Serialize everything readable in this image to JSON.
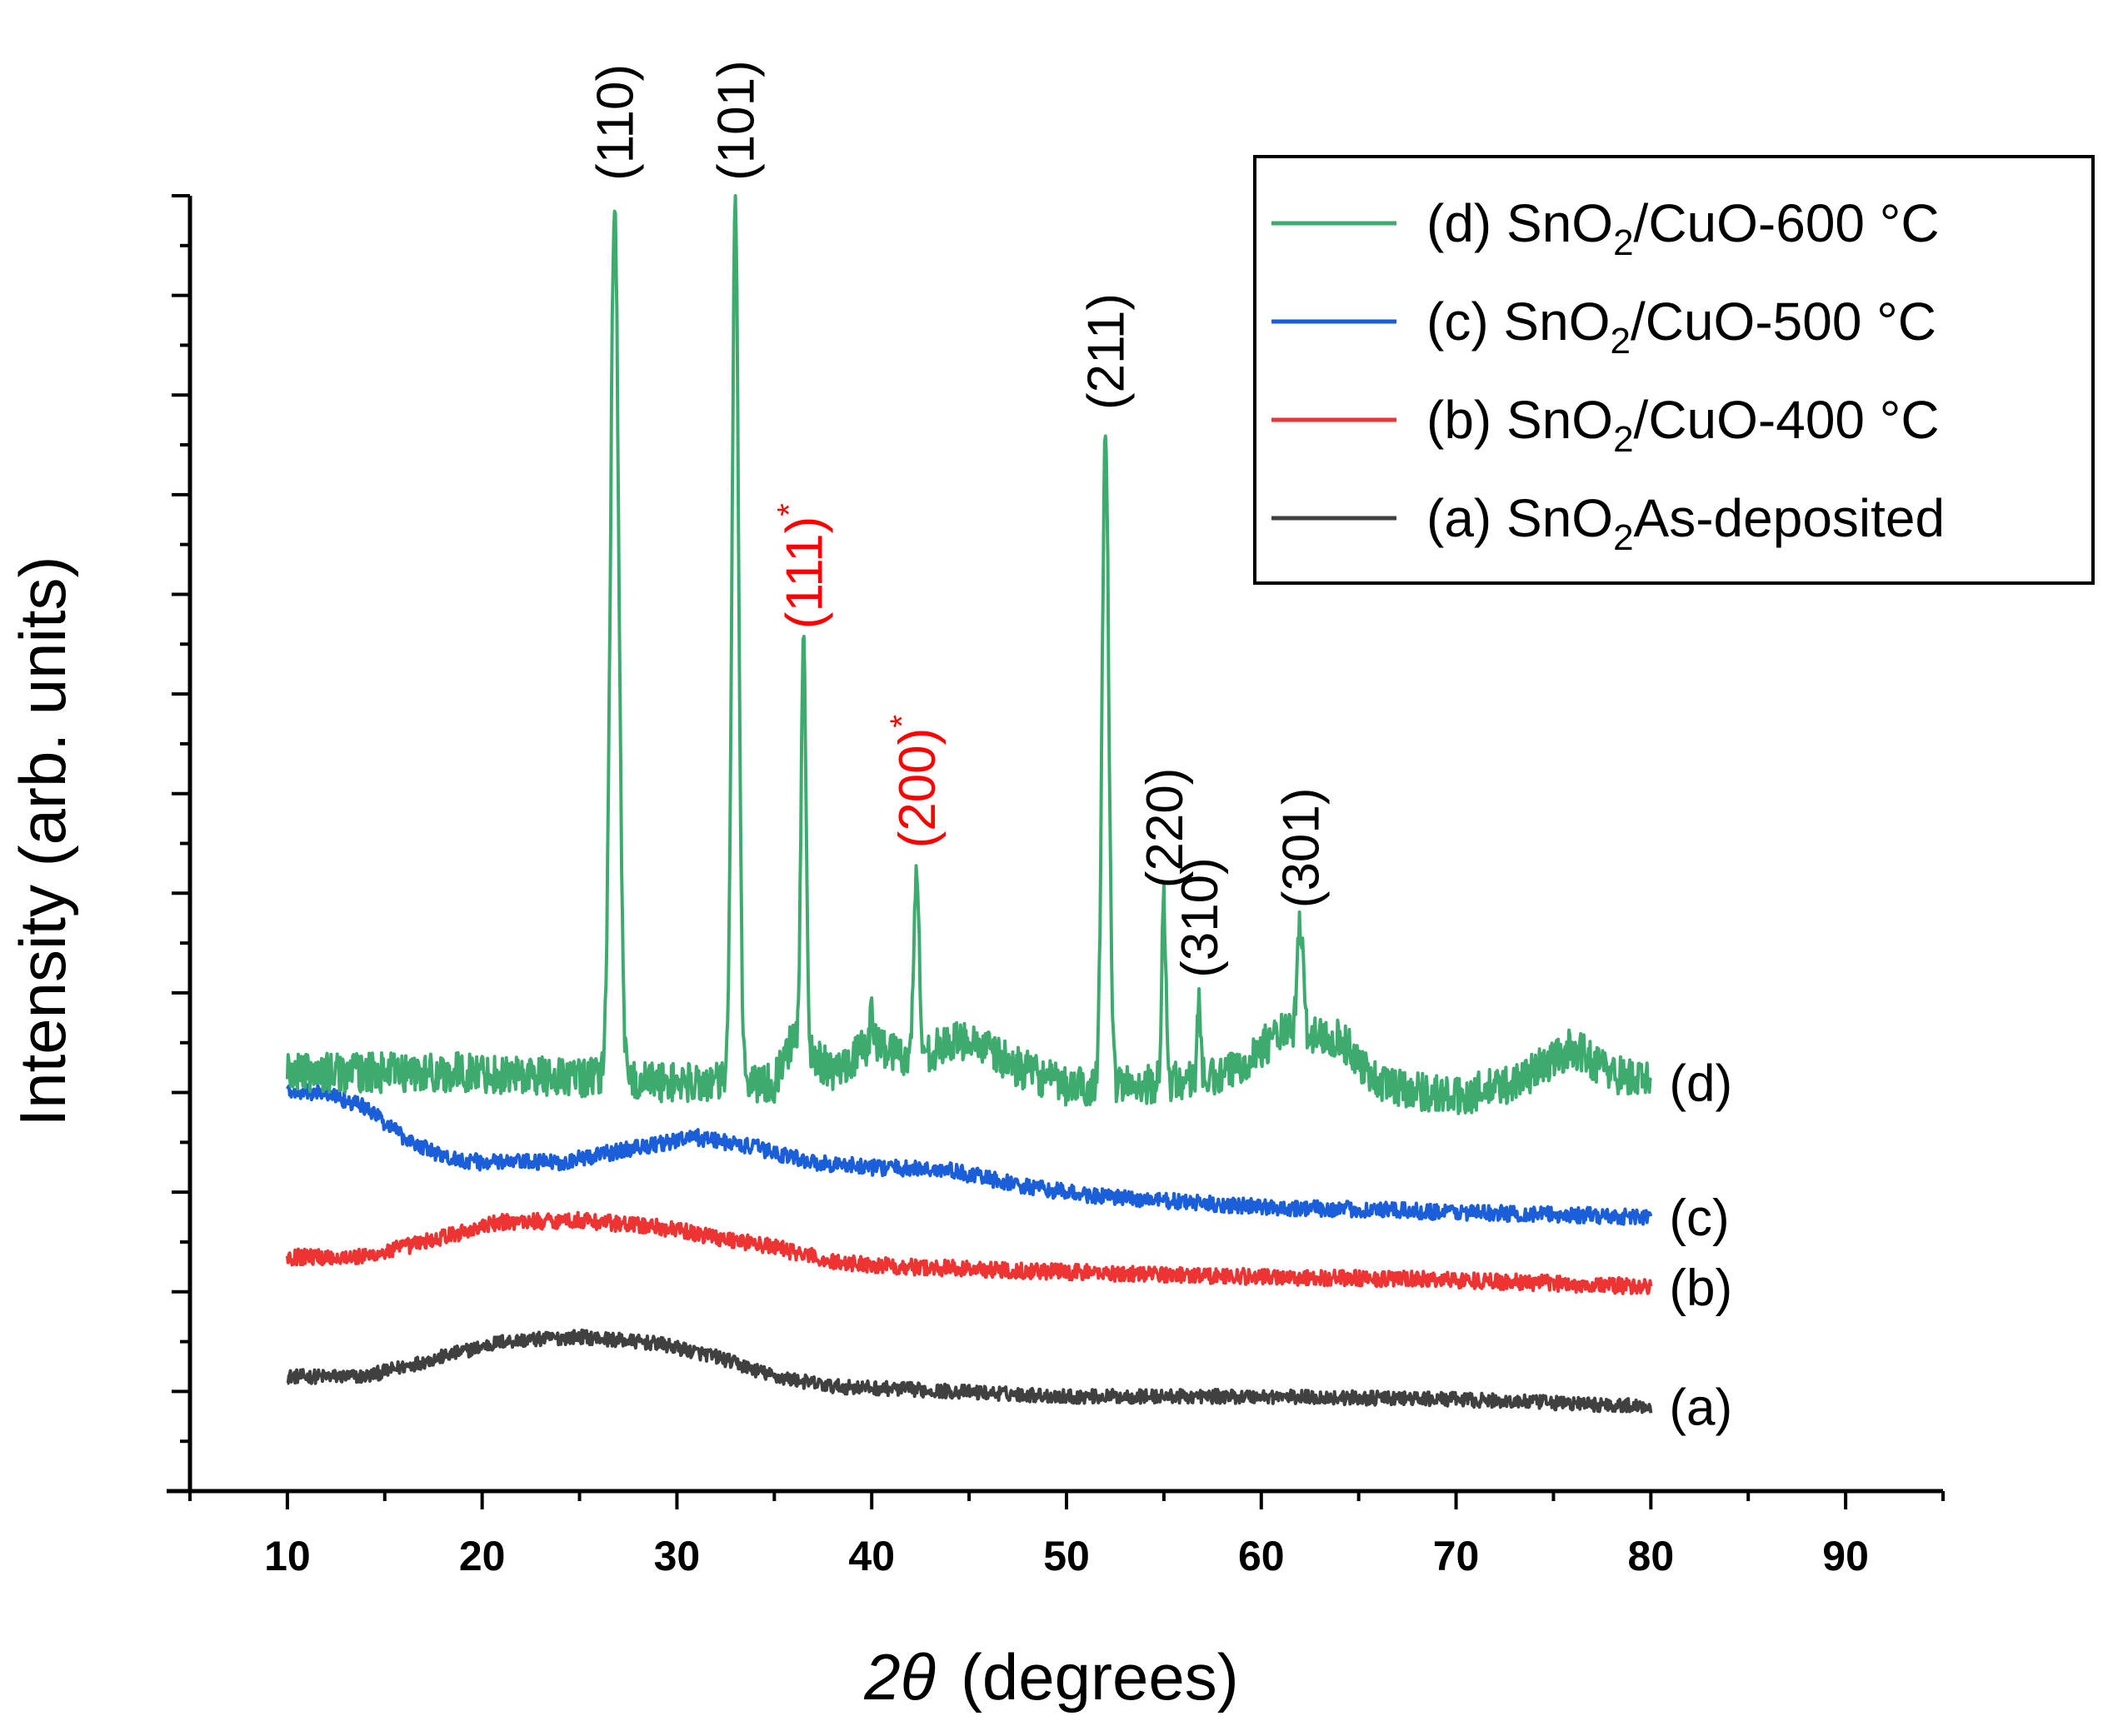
{
  "chart_data": {
    "type": "line",
    "title": "",
    "xlabel": "2θ (degrees)",
    "xlabel_parts": {
      "symbol": "2θ",
      "text": "(degrees)"
    },
    "ylabel": "Intensity (arb. units)",
    "xlim": [
      5,
      95
    ],
    "ylim": [
      0,
      13
    ],
    "x_ticks": [
      10,
      20,
      30,
      40,
      50,
      60,
      70,
      80,
      90
    ],
    "y_tick_labels_shown": false,
    "grid": false,
    "legend_position": "top-right",
    "series": [
      {
        "id": "a",
        "name": "(a) SnO2As-deposited",
        "legend_parts": [
          "(a) SnO",
          "2",
          "As-deposited"
        ],
        "end_label": "(a)",
        "color": "#404040",
        "noise": 0.07,
        "points": [
          [
            10,
            1.15
          ],
          [
            14,
            1.15
          ],
          [
            18,
            1.35
          ],
          [
            21,
            1.5
          ],
          [
            25,
            1.55
          ],
          [
            29,
            1.48
          ],
          [
            32,
            1.35
          ],
          [
            35,
            1.15
          ],
          [
            38,
            1.05
          ],
          [
            42,
            1.02
          ],
          [
            50,
            0.95
          ],
          [
            60,
            0.95
          ],
          [
            70,
            0.92
          ],
          [
            80,
            0.85
          ]
        ]
      },
      {
        "id": "b",
        "name": "(b) SnO2/CuO-400 °C",
        "legend_parts": [
          "(b) SnO",
          "2",
          "/CuO-400 °C"
        ],
        "end_label": "(b)",
        "color": "#EE3333",
        "noise": 0.08,
        "points": [
          [
            10,
            2.35
          ],
          [
            14,
            2.35
          ],
          [
            18,
            2.55
          ],
          [
            21,
            2.7
          ],
          [
            25,
            2.72
          ],
          [
            29,
            2.65
          ],
          [
            32,
            2.55
          ],
          [
            35,
            2.45
          ],
          [
            38,
            2.3
          ],
          [
            42,
            2.25
          ],
          [
            50,
            2.2
          ],
          [
            60,
            2.15
          ],
          [
            70,
            2.12
          ],
          [
            80,
            2.05
          ]
        ]
      },
      {
        "id": "c",
        "name": "(c) SnO2/CuO-500 °C",
        "legend_parts": [
          "(c) SnO",
          "2",
          "/CuO-500 °C"
        ],
        "end_label": "(c)",
        "color": "#1A5FD9",
        "noise": 0.08,
        "points": [
          [
            10,
            4.0
          ],
          [
            12,
            4.0
          ],
          [
            14,
            3.85
          ],
          [
            16,
            3.55
          ],
          [
            18,
            3.35
          ],
          [
            20,
            3.3
          ],
          [
            24,
            3.3
          ],
          [
            28,
            3.45
          ],
          [
            31,
            3.55
          ],
          [
            34,
            3.45
          ],
          [
            37,
            3.3
          ],
          [
            40,
            3.25
          ],
          [
            44,
            3.22
          ],
          [
            48,
            3.05
          ],
          [
            52,
            2.95
          ],
          [
            60,
            2.85
          ],
          [
            70,
            2.8
          ],
          [
            80,
            2.75
          ]
        ]
      },
      {
        "id": "d",
        "name": "(d) SnO2/CuO-600 °C",
        "legend_parts": [
          "(d) SnO",
          "2",
          "/CuO-600 °C"
        ],
        "end_label": "(d)",
        "color": "#3DAB6E",
        "noise": 0.2,
        "baseline": [
          [
            10,
            4.2
          ],
          [
            20,
            4.2
          ],
          [
            25,
            4.15
          ],
          [
            30,
            4.1
          ],
          [
            35,
            4.1
          ],
          [
            36,
            4.55
          ],
          [
            38,
            4.2
          ],
          [
            40,
            4.5
          ],
          [
            42,
            4.35
          ],
          [
            45,
            4.55
          ],
          [
            47,
            4.3
          ],
          [
            50,
            4.05
          ],
          [
            55,
            4.1
          ],
          [
            58,
            4.15
          ],
          [
            61,
            4.6
          ],
          [
            64,
            4.55
          ],
          [
            66,
            4.1
          ],
          [
            70,
            3.95
          ],
          [
            73,
            4.1
          ],
          [
            76,
            4.45
          ],
          [
            78,
            4.2
          ],
          [
            80,
            4.1
          ]
        ],
        "peaks": [
          {
            "x": 26.8,
            "height": 13.0,
            "width": 0.5,
            "hkl": "(110)"
          },
          {
            "x": 33.0,
            "height": 13.0,
            "width": 0.4,
            "hkl": "(101)"
          },
          {
            "x": 36.5,
            "height": 8.5,
            "width": 0.3,
            "hkl": "(111)",
            "impurity": true
          },
          {
            "x": 40.0,
            "height": 4.8,
            "width": 0.2,
            "hkl": ""
          },
          {
            "x": 42.3,
            "height": 6.3,
            "width": 0.3,
            "hkl": "(200)",
            "impurity": true
          },
          {
            "x": 52.0,
            "height": 10.7,
            "width": 0.4,
            "hkl": "(211)"
          },
          {
            "x": 55.0,
            "height": 5.9,
            "width": 0.25,
            "hkl": "(220)"
          },
          {
            "x": 56.8,
            "height": 5.0,
            "width": 0.2,
            "hkl": "(310)"
          },
          {
            "x": 62.0,
            "height": 5.7,
            "width": 0.35,
            "hkl": "(301)"
          }
        ]
      }
    ],
    "annotations": [
      {
        "text": "(110)",
        "x": 26.8,
        "color": "#000000"
      },
      {
        "text": "(101)",
        "x": 33.0,
        "color": "#000000"
      },
      {
        "text": "(111)",
        "x": 36.5,
        "color": "#FF0000",
        "marker": "*"
      },
      {
        "text": "(200)",
        "x": 42.3,
        "color": "#FF0000",
        "marker": "*"
      },
      {
        "text": "(211)",
        "x": 52.0,
        "color": "#000000"
      },
      {
        "text": "(220)",
        "x": 55.0,
        "color": "#000000"
      },
      {
        "text": "(310)",
        "x": 56.8,
        "color": "#000000"
      },
      {
        "text": "(301)",
        "x": 62.0,
        "color": "#000000"
      }
    ]
  }
}
